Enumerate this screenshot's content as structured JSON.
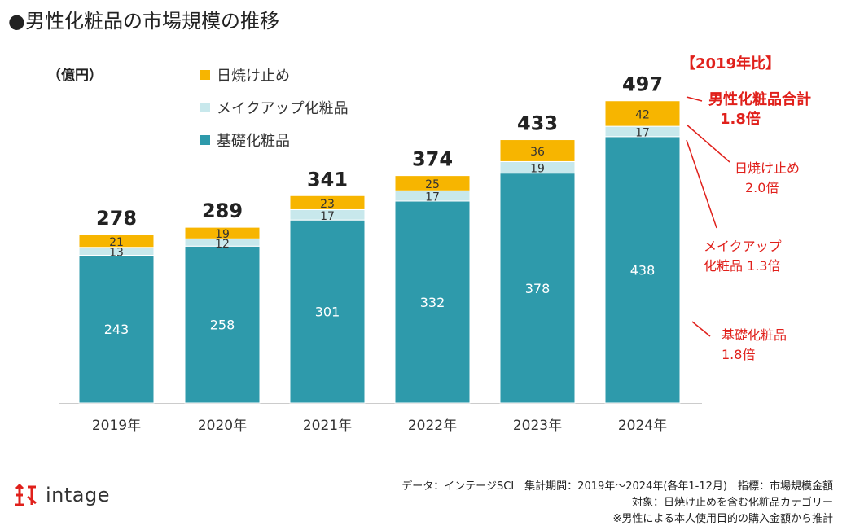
{
  "title": "●男性化粧品の市場規模の推移",
  "unit_label": "（億円）",
  "legend": [
    {
      "label": "日焼け止め",
      "color": "#f7b500"
    },
    {
      "label": "メイクアップ化粧品",
      "color": "#c8e8ec"
    },
    {
      "label": "基礎化粧品",
      "color": "#2e9aab"
    }
  ],
  "comparison": {
    "header": "【2019年比】",
    "total_label": "男性化粧品合計",
    "total_ratio": "1.8倍",
    "sunscreen_label": "日焼け止め",
    "sunscreen_ratio": "2.0倍",
    "makeup_label_1": "メイクアップ",
    "makeup_label_2": "化粧品 1.3倍",
    "skincare_label": "基礎化粧品",
    "skincare_ratio": "1.8倍"
  },
  "chart_data": {
    "type": "bar",
    "stacked": true,
    "categories": [
      "2019年",
      "2020年",
      "2021年",
      "2022年",
      "2023年",
      "2024年"
    ],
    "series": [
      {
        "name": "基礎化粧品",
        "values": [
          243,
          258,
          301,
          332,
          378,
          438
        ],
        "color": "#2e9aab"
      },
      {
        "name": "メイクアップ化粧品",
        "values": [
          13,
          12,
          17,
          17,
          19,
          17
        ],
        "color": "#c8e8ec"
      },
      {
        "name": "日焼け止め",
        "values": [
          21,
          19,
          23,
          25,
          36,
          42
        ],
        "color": "#f7b500"
      }
    ],
    "totals": [
      278,
      289,
      341,
      374,
      433,
      497
    ],
    "ylabel": "億円",
    "ylim": [
      0,
      500
    ]
  },
  "footer": {
    "line1": "データ：インテージSCI　集計期間：2019年～2024年(各年1-12月)　指標：市場規模金額",
    "line2": "対象：日焼け止めを含む化粧品カテゴリー",
    "line3": "※男性による本人使用目的の購入金額から推計"
  },
  "logo_text": "intage"
}
